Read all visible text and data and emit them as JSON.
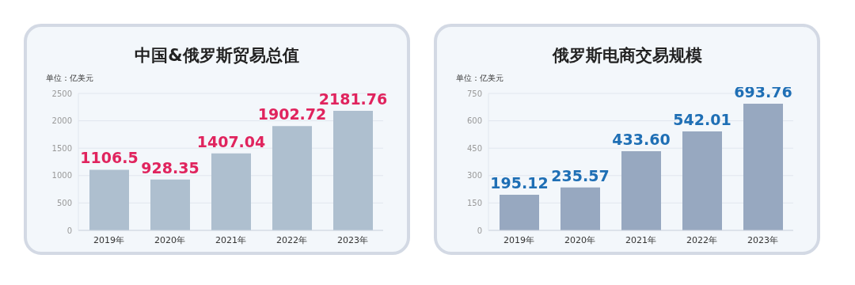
{
  "chart_data": [
    {
      "type": "bar",
      "title": "中国&俄罗斯贸易总值",
      "ylabel": "单位：亿美元",
      "categories": [
        "2019年",
        "2020年",
        "2021年",
        "2022年",
        "2023年"
      ],
      "values": [
        1106.5,
        928.35,
        1407.04,
        1902.72,
        2181.76
      ],
      "color": "#aebfcf",
      "data_labels": true,
      "ylim": [
        0,
        2500
      ],
      "yticks": [
        0,
        500,
        1000,
        1500,
        2000,
        2500
      ],
      "grid": "y"
    },
    {
      "type": "bar",
      "title": "俄罗斯电商交易规模",
      "ylabel": "单位：亿美元",
      "categories": [
        "2019年",
        "2020年",
        "2021年",
        "2022年",
        "2023年"
      ],
      "values": [
        195.12,
        235.57,
        433.6,
        542.01,
        693.76
      ],
      "color": "#97a8c0",
      "value_labels": [
        "195.12",
        "235.57",
        "433.60",
        "542.01",
        "693.76"
      ],
      "ylim": [
        0,
        750
      ],
      "yticks": [
        0,
        150,
        300,
        450,
        600,
        750
      ],
      "grid": "y"
    }
  ]
}
